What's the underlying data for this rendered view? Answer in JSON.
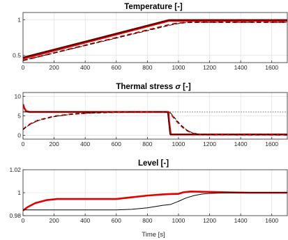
{
  "chart_data": [
    {
      "type": "line",
      "title_prefix": "Temperature",
      "title_symbol": "",
      "title_suffix": " [-]",
      "xlim": [
        0,
        1700
      ],
      "ylim": [
        0.4,
        1.1
      ],
      "xticks": [
        0,
        200,
        400,
        600,
        800,
        1000,
        1200,
        1400,
        1600
      ],
      "xtick_labels": [
        "0",
        "200",
        "400",
        "600",
        "800",
        "1000",
        "1200",
        "1400",
        "1600"
      ],
      "yticks": [
        0.5,
        1
      ],
      "ytick_labels": [
        "0.5",
        "1"
      ],
      "grid": true,
      "xlabel": "",
      "series": [
        {
          "color": "#5a0000",
          "dash": "",
          "width": 2.4,
          "x": [
            0,
            940,
            1700
          ],
          "y": [
            0.47,
            0.995,
            0.995
          ]
        },
        {
          "color": "#e00000",
          "dash": "",
          "width": 1.6,
          "x": [
            0,
            940,
            1700
          ],
          "y": [
            0.45,
            0.98,
            0.98
          ]
        },
        {
          "color": "#e00000",
          "dash": "7,4",
          "width": 2.0,
          "x": [
            0,
            950,
            1000,
            1050,
            1100,
            1700
          ],
          "y": [
            0.43,
            0.935,
            0.953,
            0.962,
            0.965,
            0.965
          ]
        },
        {
          "color": "#000000",
          "dash": "6,3",
          "width": 1.0,
          "x": [
            0,
            960,
            1010,
            1060,
            1110,
            1700
          ],
          "y": [
            0.43,
            0.93,
            0.95,
            0.96,
            0.963,
            0.963
          ]
        }
      ]
    },
    {
      "type": "line",
      "title_prefix": "Thermal stress ",
      "title_symbol": "σ",
      "title_suffix": " [-]",
      "xlim": [
        0,
        1700
      ],
      "ylim": [
        -1,
        11
      ],
      "xticks": [
        0,
        200,
        400,
        600,
        800,
        1000,
        1200,
        1400,
        1600
      ],
      "xtick_labels": [
        "0",
        "200",
        "400",
        "600",
        "800",
        "1000",
        "1200",
        "1400",
        "1600"
      ],
      "yticks": [
        0,
        5,
        10
      ],
      "ytick_labels": [
        "0",
        "5",
        "10"
      ],
      "grid": true,
      "xlabel": "",
      "series": [
        {
          "color": "#555555",
          "dash": "1.5,2",
          "width": 0.9,
          "x": [
            930,
            1700
          ],
          "y": [
            6,
            6
          ]
        },
        {
          "color": "#e00000",
          "dash": "",
          "width": 2.6,
          "x": [
            0,
            8,
            20,
            40,
            935,
            940,
            950,
            1700
          ],
          "y": [
            8.0,
            7.0,
            6.2,
            6.0,
            6.0,
            3.5,
            0.2,
            0.2
          ]
        },
        {
          "color": "#000000",
          "dash": "",
          "width": 1.0,
          "x": [
            0,
            930,
            935,
            945,
            1700
          ],
          "y": [
            6.0,
            6.0,
            4.0,
            0.2,
            0.2
          ]
        },
        {
          "color": "#e00000",
          "dash": "6,4",
          "width": 2.0,
          "x": [
            0,
            20,
            50,
            100,
            200,
            300,
            400,
            500,
            600,
            700,
            800,
            900,
            940,
            960,
            980,
            1000,
            1020,
            1050,
            1090,
            1150,
            1700
          ],
          "y": [
            1.5,
            2.2,
            3.0,
            3.9,
            4.9,
            5.4,
            5.7,
            5.85,
            5.95,
            6.0,
            6.0,
            6.0,
            5.9,
            5.0,
            4.0,
            3.1,
            2.3,
            1.3,
            0.5,
            0.15,
            0.1
          ]
        },
        {
          "color": "#000000",
          "dash": "5,3",
          "width": 1.0,
          "x": [
            0,
            20,
            50,
            100,
            200,
            300,
            400,
            500,
            600,
            700,
            800,
            900,
            945,
            965,
            985,
            1005,
            1025,
            1055,
            1095,
            1155,
            1700
          ],
          "y": [
            1.4,
            2.1,
            2.9,
            3.8,
            4.8,
            5.35,
            5.65,
            5.8,
            5.9,
            5.97,
            6.0,
            6.0,
            5.9,
            5.0,
            4.0,
            3.1,
            2.3,
            1.3,
            0.5,
            0.15,
            0.1
          ]
        }
      ]
    },
    {
      "type": "line",
      "title_prefix": "Level",
      "title_symbol": "",
      "title_suffix": " [-]",
      "xlim": [
        0,
        1700
      ],
      "ylim": [
        0.98,
        1.02
      ],
      "xticks": [
        0,
        200,
        400,
        600,
        800,
        1000,
        1200,
        1400,
        1600
      ],
      "xtick_labels": [
        "0",
        "200",
        "400",
        "600",
        "800",
        "1000",
        "1200",
        "1400",
        "1600"
      ],
      "yticks": [
        0.98,
        1,
        1.02
      ],
      "ytick_labels": [
        "0.98",
        "1",
        "1.02"
      ],
      "grid": true,
      "xlabel": "Time [s]",
      "series": [
        {
          "color": "#e00000",
          "dash": "",
          "width": 2.6,
          "x": [
            0,
            30,
            80,
            150,
            220,
            300,
            600,
            700,
            800,
            900,
            950,
            1000,
            1030,
            1080,
            1150,
            1250,
            1350,
            1450,
            1700
          ],
          "y": [
            0.9845,
            0.9875,
            0.991,
            0.9935,
            0.9945,
            0.9945,
            0.9945,
            0.996,
            0.9975,
            0.9985,
            0.9988,
            0.999,
            1.0003,
            1.001,
            1.0008,
            1.0005,
            1.0002,
            1.0,
            1.0
          ]
        },
        {
          "color": "#000000",
          "dash": "",
          "width": 1.0,
          "x": [
            0,
            600,
            700,
            800,
            900,
            950,
            1000,
            1050,
            1100,
            1150,
            1200,
            1300,
            1400,
            1700
          ],
          "y": [
            0.985,
            0.985,
            0.9855,
            0.9868,
            0.989,
            0.9898,
            0.9925,
            0.9955,
            0.9975,
            0.9988,
            0.9994,
            0.9998,
            1.0,
            1.0
          ]
        }
      ]
    }
  ]
}
